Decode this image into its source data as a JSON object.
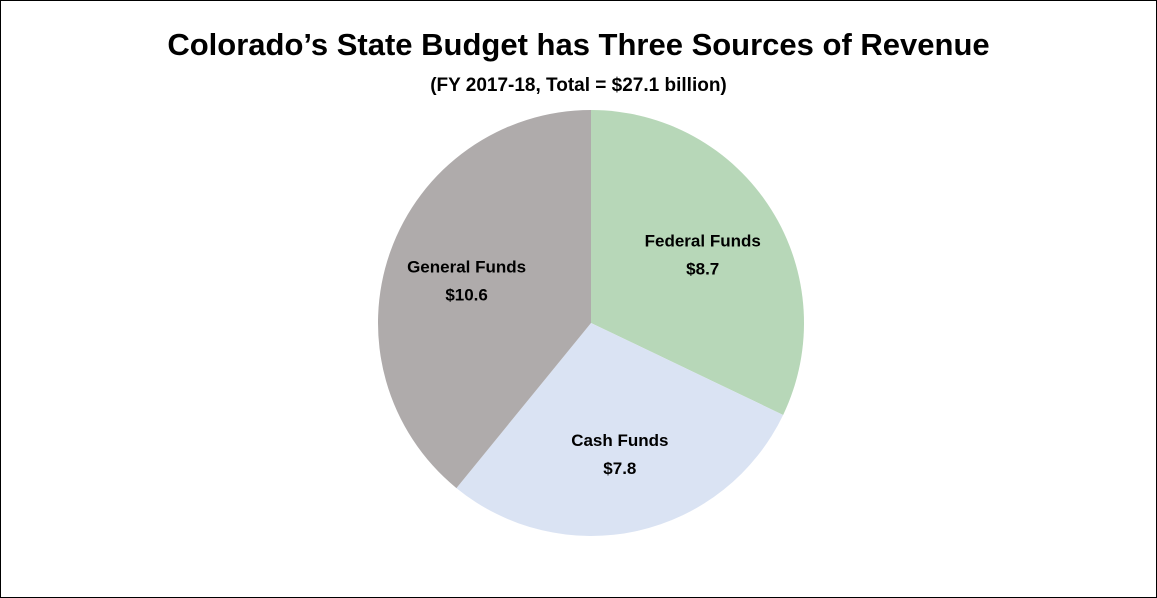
{
  "chart_data": {
    "type": "pie",
    "title": "Colorado’s State Budget has Three Sources of Revenue",
    "subtitle": "(FY 2017-18,  Total = $27.1 billion)",
    "slices": [
      {
        "name": "Federal Funds",
        "value": 8.7,
        "value_label": "$8.7",
        "color": "#b7d7b8"
      },
      {
        "name": "Cash Funds",
        "value": 7.8,
        "value_label": "$7.8",
        "color": "#dae3f3"
      },
      {
        "name": "General Funds",
        "value": 10.6,
        "value_label": "$10.6",
        "color": "#afabab"
      }
    ],
    "start_angle_deg": 0,
    "direction": "clockwise",
    "legend": "none"
  }
}
